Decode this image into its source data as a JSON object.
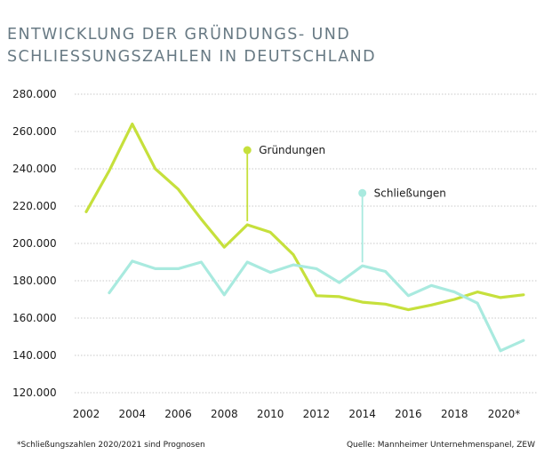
{
  "title_lines": [
    "ENTWICKLUNG DER GRÜNDUNGS- UND",
    "SCHLIESSUNGSZAHLEN IN DEUTSCHLAND"
  ],
  "footnote": "*Schließungszahlen 2020/2021 sind Prognosen",
  "source": "Quelle: Mannheimer Unternehmenspanel, ZEW",
  "colors": {
    "gruendungen": "#c6e03c",
    "schliessungen": "#a9eadf",
    "grid": "#c8c8c8",
    "title": "#687a84"
  },
  "chart_data": {
    "type": "line",
    "title": "ENTWICKLUNG DER GRÜNDUNGS- UND SCHLIESSUNGSZAHLEN IN DEUTSCHLAND",
    "xlabel": "",
    "ylabel": "",
    "xlim": [
      2002,
      2021
    ],
    "ylim": [
      120000,
      280000
    ],
    "grid": true,
    "y_ticks": [
      {
        "value": 120000,
        "label": "120.000"
      },
      {
        "value": 140000,
        "label": "140.000"
      },
      {
        "value": 160000,
        "label": "160.000"
      },
      {
        "value": 180000,
        "label": "180.000"
      },
      {
        "value": 200000,
        "label": "200.000"
      },
      {
        "value": 220000,
        "label": "220.000"
      },
      {
        "value": 240000,
        "label": "240.000"
      },
      {
        "value": 260000,
        "label": "260.000"
      },
      {
        "value": 280000,
        "label": "280.000"
      }
    ],
    "x_ticks": [
      {
        "value": 2002,
        "label": "2002"
      },
      {
        "value": 2004,
        "label": "2004"
      },
      {
        "value": 2006,
        "label": "2006"
      },
      {
        "value": 2008,
        "label": "2008"
      },
      {
        "value": 2010,
        "label": "2010"
      },
      {
        "value": 2012,
        "label": "2012"
      },
      {
        "value": 2014,
        "label": "2014"
      },
      {
        "value": 2016,
        "label": "2016"
      },
      {
        "value": 2018,
        "label": "2018"
      },
      {
        "value": 2020,
        "label": "2020*"
      }
    ],
    "series": [
      {
        "name": "Gründungen",
        "color": "#c6e03c",
        "label_at": {
          "x": 2009,
          "y": 250000
        },
        "x": [
          2002,
          2003,
          2004,
          2005,
          2006,
          2007,
          2008,
          2009,
          2010,
          2011,
          2012,
          2013,
          2014,
          2015,
          2016,
          2017,
          2018,
          2019,
          2020,
          2021
        ],
        "y": [
          217000,
          239000,
          264000,
          240000,
          229000,
          213000,
          198000,
          210000,
          206000,
          194000,
          172000,
          171500,
          168500,
          167500,
          164500,
          167000,
          170000,
          174000,
          171000,
          172500
        ]
      },
      {
        "name": "Schließungen",
        "color": "#a9eadf",
        "label_at": {
          "x": 2014,
          "y": 227000
        },
        "x": [
          2003,
          2004,
          2005,
          2006,
          2007,
          2008,
          2009,
          2010,
          2011,
          2012,
          2013,
          2014,
          2015,
          2016,
          2017,
          2018,
          2019,
          2020,
          2021
        ],
        "y": [
          173500,
          190500,
          186500,
          186500,
          190000,
          172500,
          190000,
          184500,
          188500,
          186500,
          179000,
          188000,
          185000,
          172000,
          177500,
          174000,
          168000,
          142500,
          148000
        ]
      }
    ]
  }
}
